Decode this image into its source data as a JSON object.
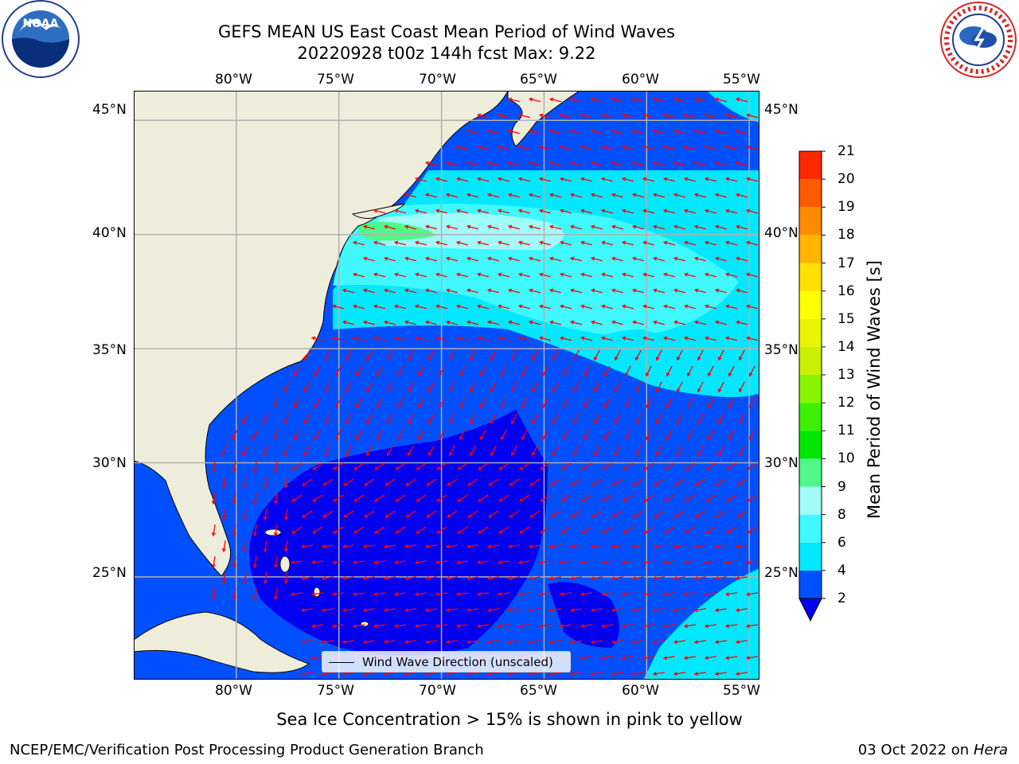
{
  "title": {
    "line1": "GEFS MEAN US East Coast Mean Period of Wind Waves",
    "line2": "20220928 t00z 144h fcst   Max: 9.22"
  },
  "logos": {
    "noaa_name": "NOAA",
    "nws_name": "NATIONAL WEATHER SERVICE"
  },
  "map": {
    "lon_labels": [
      "80°W",
      "75°W",
      "70°W",
      "65°W",
      "60°W",
      "55°W"
    ],
    "lat_labels_left": [
      "45°N",
      "40°N",
      "35°N",
      "30°N",
      "25°N"
    ],
    "lat_labels_right": [
      "45°N",
      "40°N",
      "35°N",
      "30°N",
      "25°N"
    ],
    "lon_range": [
      -85,
      -54.5
    ],
    "lat_range": [
      20.5,
      46.3
    ],
    "gridlines": true,
    "land_color": "#eeeddc",
    "grid_color": "#b0b0b0",
    "vector_color": "#ff0000"
  },
  "legend": {
    "label": "Wind Wave Direction (unscaled)"
  },
  "colorbar": {
    "label": "Mean Period of Wind Waves [s]",
    "ticks": [
      "2",
      "4",
      "6",
      "8",
      "9",
      "10",
      "11",
      "12",
      "13",
      "14",
      "15",
      "16",
      "17",
      "18",
      "19",
      "20",
      "21"
    ],
    "levels": [
      2,
      4,
      6,
      8,
      9,
      10,
      11,
      12,
      13,
      14,
      15,
      16,
      17,
      18,
      19,
      20,
      21
    ],
    "colors": [
      "#0050ff",
      "#00e8ff",
      "#40f8ff",
      "#a0fcf8",
      "#50f88a",
      "#00e600",
      "#3cf000",
      "#88f400",
      "#c8f000",
      "#e8f400",
      "#ffff00",
      "#ffe000",
      "#ffb400",
      "#ff8c00",
      "#ff5a00",
      "#ff2800",
      "#ff0000"
    ],
    "under_color": "#0000f0",
    "extend": "min"
  },
  "chart_data": {
    "type": "heatmap",
    "variable": "Mean Period of Wind Waves [s]",
    "max": 9.22,
    "x_range_lon": [
      -85,
      -54.5
    ],
    "y_range_lat": [
      20.5,
      46.3
    ],
    "regions": [
      {
        "lon": [
          -70,
          -60
        ],
        "lat": [
          35,
          40
        ],
        "value": 7
      },
      {
        "lon": [
          -75,
          -70
        ],
        "lat": [
          38,
          40
        ],
        "value": 8
      },
      {
        "lon": [
          -76,
          -73
        ],
        "lat": [
          39.5,
          40.5
        ],
        "value": 9.22
      },
      {
        "lon": [
          -70,
          -60
        ],
        "lat": [
          40,
          43
        ],
        "value": 6
      },
      {
        "lon": [
          -75,
          -62
        ],
        "lat": [
          21,
          30
        ],
        "value": 1.8
      },
      {
        "lon": [
          -62,
          -55
        ],
        "lat": [
          21,
          25
        ],
        "value": 5
      },
      {
        "lon": [
          -80,
          -60
        ],
        "lat": [
          30,
          35
        ],
        "value": 3
      }
    ]
  },
  "caption": "Sea Ice Concentration > 15% is shown in pink to yellow",
  "footer": {
    "left": "NCEP/EMC/Verification Post Processing Product Generation Branch",
    "right_date": "03 Oct 2022 on ",
    "right_host": "Hera"
  }
}
